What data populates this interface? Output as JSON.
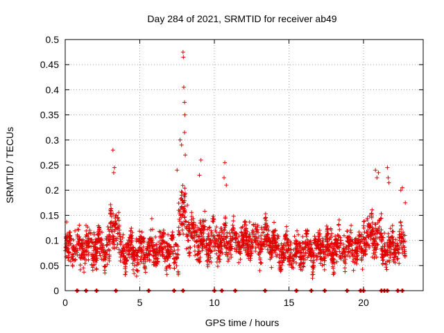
{
  "chart_data": {
    "type": "scatter",
    "title": "Day 284 of 2021, SRMTID for receiver ab49",
    "xlabel": "GPS time / hours",
    "ylabel": "SRMTID / TECUs",
    "xlim": [
      0,
      24
    ],
    "ylim": [
      0,
      0.5
    ],
    "x_ticks": [
      0,
      5,
      10,
      15,
      20
    ],
    "x_tick_labels": [
      "0",
      "5",
      "10",
      "15",
      "20"
    ],
    "y_ticks": [
      0,
      0.05,
      0.1,
      0.15,
      0.2,
      0.25,
      0.3,
      0.35,
      0.4,
      0.45,
      0.5
    ],
    "y_tick_labels": [
      "0",
      "0.05",
      "0.1",
      "0.15",
      "0.2",
      "0.25",
      "0.3",
      "0.35",
      "0.4",
      "0.45",
      "0.5"
    ],
    "grid": true,
    "marker": "+",
    "color": "#e00000",
    "series": [
      {
        "name": "SRMTID",
        "description": "dense scatter of '+' markers; base level ~0.05-0.15 TECU with peaks",
        "clusters": [
          {
            "x_start": 0.0,
            "x_end": 3.0,
            "center": 0.085,
            "spread": 0.03
          },
          {
            "x_start": 3.0,
            "x_end": 3.6,
            "center": 0.13,
            "spread": 0.035
          },
          {
            "x_start": 3.6,
            "x_end": 7.6,
            "center": 0.08,
            "spread": 0.03
          },
          {
            "x_start": 7.6,
            "x_end": 8.2,
            "center": 0.15,
            "spread": 0.045
          },
          {
            "x_start": 8.2,
            "x_end": 9.0,
            "center": 0.11,
            "spread": 0.035
          },
          {
            "x_start": 9.0,
            "x_end": 11.0,
            "center": 0.1,
            "spread": 0.035
          },
          {
            "x_start": 11.0,
            "x_end": 14.0,
            "center": 0.1,
            "spread": 0.03
          },
          {
            "x_start": 14.0,
            "x_end": 17.0,
            "center": 0.08,
            "spread": 0.03
          },
          {
            "x_start": 17.0,
            "x_end": 20.0,
            "center": 0.085,
            "spread": 0.03
          },
          {
            "x_start": 20.0,
            "x_end": 21.2,
            "center": 0.11,
            "spread": 0.035
          },
          {
            "x_start": 21.2,
            "x_end": 22.8,
            "center": 0.085,
            "spread": 0.03
          }
        ],
        "peaks": [
          {
            "x": 3.2,
            "y": 0.28
          },
          {
            "x": 3.3,
            "y": 0.245
          },
          {
            "x": 3.25,
            "y": 0.235
          },
          {
            "x": 7.5,
            "y": 0.24
          },
          {
            "x": 7.7,
            "y": 0.3
          },
          {
            "x": 7.8,
            "y": 0.29
          },
          {
            "x": 7.9,
            "y": 0.475
          },
          {
            "x": 7.92,
            "y": 0.465
          },
          {
            "x": 7.95,
            "y": 0.405
          },
          {
            "x": 8.0,
            "y": 0.375
          },
          {
            "x": 8.02,
            "y": 0.35
          },
          {
            "x": 8.0,
            "y": 0.315
          },
          {
            "x": 8.05,
            "y": 0.27
          },
          {
            "x": 9.1,
            "y": 0.26
          },
          {
            "x": 9.0,
            "y": 0.23
          },
          {
            "x": 10.7,
            "y": 0.255
          },
          {
            "x": 10.65,
            "y": 0.225
          },
          {
            "x": 10.8,
            "y": 0.21
          },
          {
            "x": 20.8,
            "y": 0.24
          },
          {
            "x": 21.0,
            "y": 0.235
          },
          {
            "x": 20.9,
            "y": 0.225
          },
          {
            "x": 21.6,
            "y": 0.245
          },
          {
            "x": 21.65,
            "y": 0.225
          },
          {
            "x": 21.7,
            "y": 0.215
          },
          {
            "x": 22.5,
            "y": 0.2
          },
          {
            "x": 22.6,
            "y": 0.205
          },
          {
            "x": 22.8,
            "y": 0.175
          }
        ]
      },
      {
        "name": "zero-level markers",
        "y": 0,
        "x": [
          0.8,
          1.4,
          2.1,
          3.4,
          5.6,
          7.3,
          7.9,
          10.0,
          10.5,
          11.4,
          13.4,
          15.5,
          16.5,
          17.4,
          18.9,
          19.8,
          20.0,
          21.2,
          21.4,
          21.6,
          22.3,
          22.6
        ]
      }
    ]
  }
}
